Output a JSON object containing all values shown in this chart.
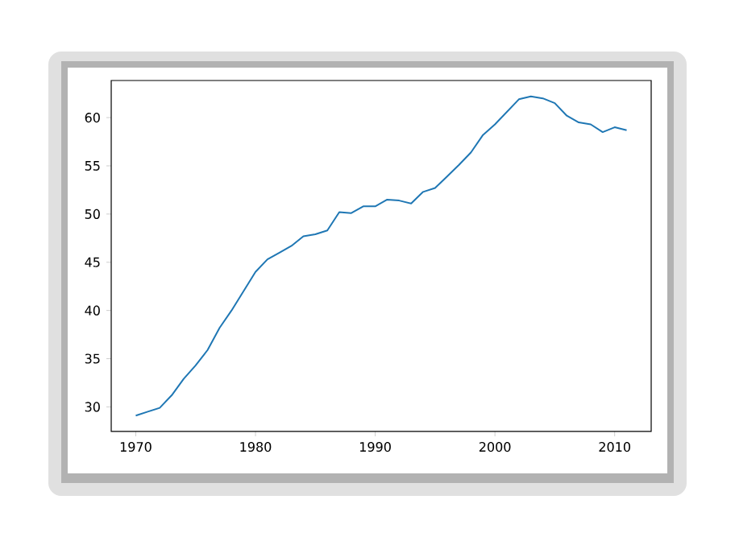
{
  "chart_data": {
    "type": "line",
    "x": [
      1970,
      1971,
      1972,
      1973,
      1974,
      1975,
      1976,
      1977,
      1978,
      1979,
      1980,
      1981,
      1982,
      1983,
      1984,
      1985,
      1986,
      1987,
      1988,
      1989,
      1990,
      1991,
      1992,
      1993,
      1994,
      1995,
      1996,
      1997,
      1998,
      1999,
      2000,
      2001,
      2002,
      2003,
      2004,
      2005,
      2006,
      2007,
      2008,
      2009,
      2010,
      2011
    ],
    "values": [
      29.1,
      29.5,
      29.9,
      31.2,
      32.9,
      34.3,
      35.9,
      38.2,
      40.0,
      42.0,
      44.0,
      45.3,
      46.0,
      46.7,
      47.7,
      47.9,
      48.3,
      50.2,
      50.1,
      50.8,
      50.8,
      51.5,
      51.4,
      51.1,
      52.3,
      52.7,
      53.9,
      55.1,
      56.4,
      58.2,
      59.3,
      60.6,
      61.9,
      62.2,
      62.0,
      61.5,
      60.2,
      59.5,
      59.3,
      58.5,
      59.0,
      58.7
    ],
    "color": "#1f77b4",
    "xlim": [
      1967.95,
      2013.05
    ],
    "ylim": [
      27.45,
      63.85
    ],
    "xticks": [
      1970,
      1980,
      1990,
      2000,
      2010
    ],
    "yticks": [
      30,
      35,
      40,
      45,
      50,
      55,
      60
    ],
    "grid": false,
    "marker": "none",
    "line_style": "solid"
  }
}
